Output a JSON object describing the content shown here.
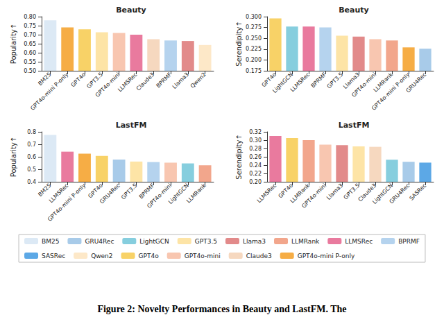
{
  "chart_data": [
    {
      "type": "bar",
      "title": "Beauty",
      "y_label": "Popularity↑",
      "categories": [
        "BM25",
        "GPT4o-mini P-only",
        "GPT4o",
        "GPT3.5",
        "GPT4o-mini",
        "LLMSRec",
        "Claude3",
        "BPRMF",
        "Llama3",
        "Qwen2"
      ],
      "values": [
        0.78,
        0.74,
        0.73,
        0.713,
        0.71,
        0.7,
        0.675,
        0.668,
        0.665,
        0.643
      ],
      "ylim": [
        0.5,
        0.8
      ],
      "yticks": [
        {
          "value": 0.5,
          "label": "0.50"
        },
        0.55,
        {
          "value": 0.6,
          "label": "0.60"
        },
        0.65,
        {
          "value": 0.7,
          "label": "0.70"
        },
        0.75,
        {
          "value": 0.8,
          "label": "0.80"
        }
      ],
      "grid": false
    },
    {
      "type": "bar",
      "title": "Beauty",
      "y_label": "Serendipity↑",
      "categories": [
        "GPT4o",
        "LightGCN",
        "LLMSRec",
        "BPRMF",
        "GPT3.5",
        "Llama3",
        "GPT4o-mini",
        "LLMRank",
        "GPT4o-mini P-only",
        "GRU4Rec"
      ],
      "values": [
        0.296,
        0.277,
        0.277,
        0.275,
        0.256,
        0.254,
        0.248,
        0.245,
        0.229,
        0.226
      ],
      "ylim": [
        0.175,
        0.3
      ],
      "yticks": [
        0.175,
        {
          "value": 0.2,
          "label": "0.200"
        },
        0.225,
        {
          "value": 0.25,
          "label": "0.250"
        },
        0.275,
        {
          "value": 0.3,
          "label": "0.300"
        }
      ],
      "grid": false
    },
    {
      "type": "bar",
      "title": "LastFM",
      "y_label": "Popularity↑",
      "categories": [
        "BM25",
        "LLMSRec",
        "GPT4o-mini P-only",
        "GPT4o",
        "GRU4Rec",
        "GPT3.5",
        "BPRMF",
        "GPT4o-mini",
        "LightGCN",
        "LLMRank"
      ],
      "values": [
        0.775,
        0.641,
        0.625,
        0.607,
        0.578,
        0.562,
        0.558,
        0.553,
        0.547,
        0.532
      ],
      "ylim": [
        0.4,
        0.8
      ],
      "yticks": [
        0.4,
        0.5,
        0.6,
        0.7,
        0.8
      ],
      "grid": false
    },
    {
      "type": "bar",
      "title": "LastFM",
      "y_label": "Serendipity↑",
      "categories": [
        "LLMSRec",
        "GPT4o",
        "LLMRank",
        "GPT4o-mini",
        "Llama3",
        "GPT3.5",
        "Claude3",
        "LightGCN",
        "GRU4Rec",
        "SASRec"
      ],
      "values": [
        0.31,
        0.305,
        0.3,
        0.289,
        0.288,
        0.285,
        0.284,
        0.253,
        0.248,
        0.246
      ],
      "ylim": [
        0.2,
        0.32
      ],
      "yticks": [
        {
          "value": 0.2,
          "label": "0.20"
        },
        0.22,
        0.24,
        0.26,
        0.28,
        {
          "value": 0.3,
          "label": "0.30"
        },
        0.32
      ],
      "grid": false
    }
  ],
  "legend": "bottom",
  "legend_items": [
    {
      "name": "BM25",
      "color": "#dce9f5"
    },
    {
      "name": "GRU4Rec",
      "color": "#a8cbe9"
    },
    {
      "name": "LightGCN",
      "color": "#86cede"
    },
    {
      "name": "GPT3.5",
      "color": "#fde4a6"
    },
    {
      "name": "Llama3",
      "color": "#e28a8a"
    },
    {
      "name": "LLMRank",
      "color": "#f2a68c"
    },
    {
      "name": "LLMSRec",
      "color": "#e97a9e"
    },
    {
      "name": "BPRMF",
      "color": "#b5d3ee"
    },
    {
      "name": "SASRec",
      "color": "#5ca8e6"
    },
    {
      "name": "Qwen2",
      "color": "#fde8c8"
    },
    {
      "name": "GPT4o",
      "color": "#f8d267"
    },
    {
      "name": "GPT4o-mini",
      "color": "#f8c6b0"
    },
    {
      "name": "Claude3",
      "color": "#f6d8bf"
    },
    {
      "name": "GPT4o-mini P-only",
      "color": "#f6ad45"
    }
  ],
  "caption": "Figure 2: Novelty Performances in Beauty and LastFM. The"
}
